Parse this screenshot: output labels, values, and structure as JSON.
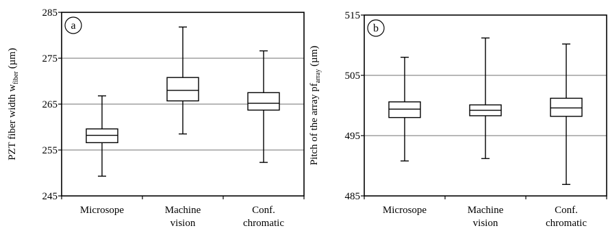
{
  "chart_data": [
    {
      "type": "box",
      "panel_label": "a",
      "ylabel": "PZT fiber width w",
      "ylabel_sub": "fiber",
      "ylabel_unit": " (µm)",
      "ylim": [
        245,
        285
      ],
      "yticks": [
        245,
        255,
        265,
        275,
        285
      ],
      "grid": true,
      "categories": [
        {
          "lines": [
            "Microsope"
          ],
          "min": 249.3,
          "q1": 256.6,
          "median": 258.2,
          "q3": 259.6,
          "max": 266.8
        },
        {
          "lines": [
            "Machine",
            "vision"
          ],
          "min": 258.5,
          "q1": 265.7,
          "median": 268.0,
          "q3": 270.8,
          "max": 281.8
        },
        {
          "lines": [
            "Conf.",
            "chromatic"
          ],
          "min": 252.3,
          "q1": 263.7,
          "median": 265.2,
          "q3": 267.5,
          "max": 276.6
        }
      ]
    },
    {
      "type": "box",
      "panel_label": "b",
      "ylabel": "Pitch of  the array pf",
      "ylabel_sub": "array",
      "ylabel_unit": " (µm)",
      "ylim": [
        485,
        515
      ],
      "yticks": [
        485,
        495,
        505,
        515
      ],
      "grid": true,
      "categories": [
        {
          "lines": [
            "Microsope"
          ],
          "min": 490.8,
          "q1": 498.0,
          "median": 499.4,
          "q3": 500.6,
          "max": 508.0
        },
        {
          "lines": [
            "Machine",
            "vision"
          ],
          "min": 491.2,
          "q1": 498.3,
          "median": 499.2,
          "q3": 500.1,
          "max": 511.2
        },
        {
          "lines": [
            "Conf.",
            "chromatic"
          ],
          "min": 486.9,
          "q1": 498.2,
          "median": 499.6,
          "q3": 501.2,
          "max": 510.2
        }
      ]
    }
  ]
}
